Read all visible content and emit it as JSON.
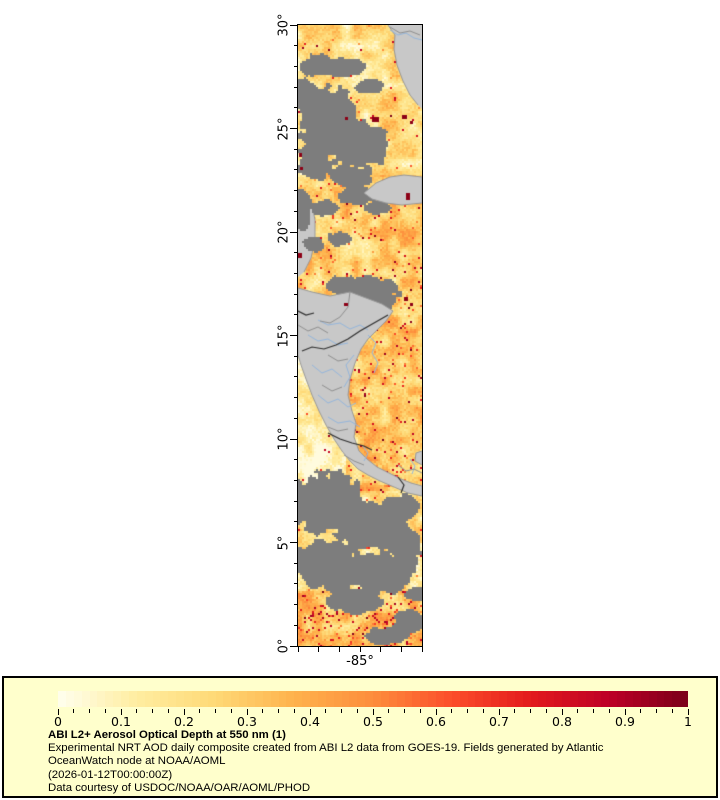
{
  "map": {
    "y_axis_labels": [
      "30°",
      "25°",
      "20°",
      "15°",
      "10°",
      "5°",
      "0°"
    ],
    "x_axis_label": "-85°",
    "lat_min": 0,
    "lat_max": 30,
    "lon_min": -88,
    "lon_max": -82,
    "colors": {
      "cloud": "#7d7d7d",
      "land": "#c8c8c8",
      "coast": "#989898",
      "country_border": "#2e2e2e",
      "admin_border": "#8f8f8f",
      "river": "#94b6dc",
      "frame": "#000000",
      "dark_red_spot": "#8c0016"
    }
  },
  "legend": {
    "background": "#ffffcc",
    "border_color": "#000000",
    "range_min": 0,
    "range_max": 1,
    "tick_labels": [
      "0",
      "0.1",
      "0.2",
      "0.3",
      "0.4",
      "0.5",
      "0.6",
      "0.7",
      "0.8",
      "0.9",
      "1"
    ],
    "palette_stops": [
      "#ffffee",
      "#ffeda0",
      "#fed976",
      "#feb24c",
      "#fd8d3c",
      "#fc4e2a",
      "#e31a1c",
      "#bd0026",
      "#7a0019"
    ],
    "title": "ABI L2+ Aerosol Optical Depth at 550 nm (1)",
    "description_line1": "Experimental NRT AOD daily composite created from ABI L2 data from GOES-19. Fields generated by Atlantic",
    "description_line2": "OceanWatch node at NOAA/AOML",
    "timestamp_line": "(2026-01-12T00:00:00Z)",
    "credit_line": "Data courtesy of USDOC/NOAA/OAR/AOML/PHOD"
  }
}
